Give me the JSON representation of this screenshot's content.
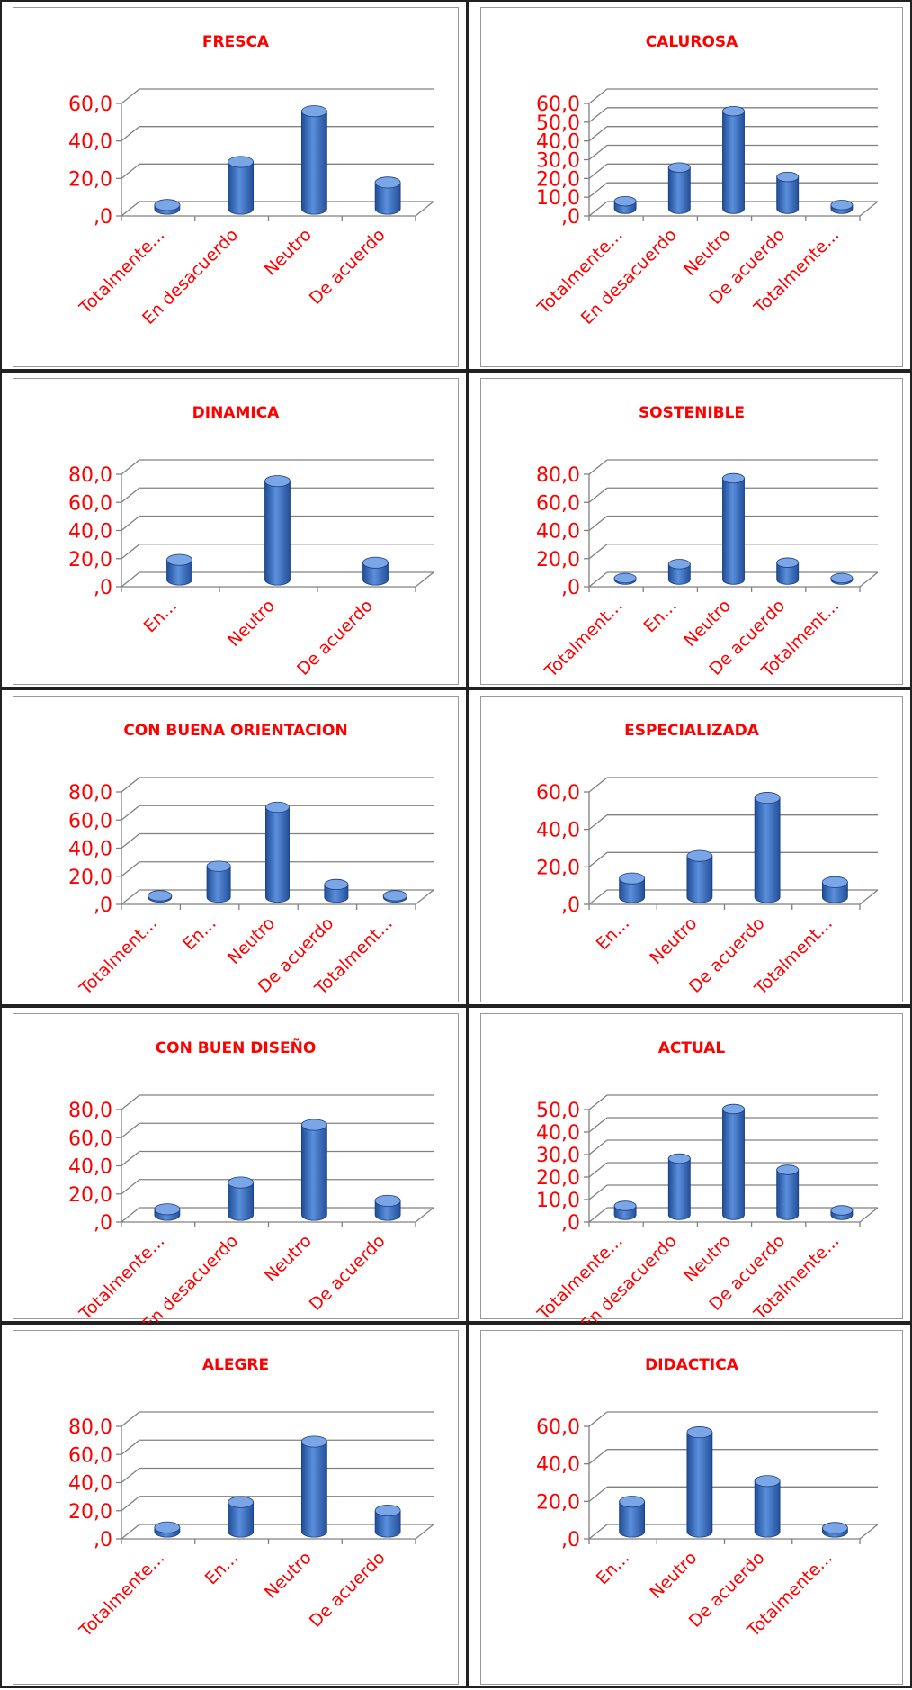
{
  "chart_data": [
    {
      "type": "bar",
      "title": "FRESCA",
      "categories": [
        "Totalmente...",
        "En desacuerdo",
        "Neutro",
        "De acuerdo"
      ],
      "values": [
        2.0,
        25.0,
        52.0,
        14.0
      ],
      "yticks": [
        "60,0",
        "40,0",
        "20,0",
        ",0"
      ],
      "ylim": [
        0,
        60
      ],
      "grid": true,
      "colors": {
        "bar": "#3a6fc4",
        "text": "#ff0000"
      }
    },
    {
      "type": "bar",
      "title": "CALUROSA",
      "categories": [
        "Totalmente...",
        "En desacuerdo",
        "Neutro",
        "De acuerdo",
        "Totalmente..."
      ],
      "values": [
        4.0,
        22.0,
        52.0,
        17.0,
        2.0
      ],
      "yticks": [
        "60,0",
        "50,0",
        "40,0",
        "30,0",
        "20,0",
        "10,0",
        ",0"
      ],
      "ylim": [
        0,
        60
      ],
      "grid": true,
      "colors": {
        "bar": "#3a6fc4",
        "text": "#ff0000"
      }
    },
    {
      "type": "bar",
      "title": "DINAMICA",
      "categories": [
        "En...",
        "Neutro",
        "De acuerdo"
      ],
      "values": [
        14.0,
        70.0,
        12.0
      ],
      "yticks": [
        "80,0",
        "60,0",
        "40,0",
        "20,0",
        ",0"
      ],
      "ylim": [
        0,
        80
      ],
      "grid": true,
      "colors": {
        "bar": "#3a6fc4",
        "text": "#ff0000"
      }
    },
    {
      "type": "bar",
      "title": "SOSTENIBLE",
      "categories": [
        "Totalment...",
        "En...",
        "Neutro",
        "De acuerdo",
        "Totalment..."
      ],
      "values": [
        1.0,
        11.0,
        72.0,
        12.0,
        1.0
      ],
      "yticks": [
        "80,0",
        "60,0",
        "40,0",
        "20,0",
        ",0"
      ],
      "ylim": [
        0,
        80
      ],
      "grid": true,
      "colors": {
        "bar": "#3a6fc4",
        "text": "#ff0000"
      }
    },
    {
      "type": "bar",
      "title": "CON BUENA ORIENTACION",
      "categories": [
        "Totalment...",
        "En...",
        "Neutro",
        "De acuerdo",
        "Totalment..."
      ],
      "values": [
        1.0,
        22.0,
        64.0,
        9.0,
        1.0
      ],
      "yticks": [
        "80,0",
        "60,0",
        "40,0",
        "20,0",
        ",0"
      ],
      "ylim": [
        0,
        80
      ],
      "grid": true,
      "colors": {
        "bar": "#3a6fc4",
        "text": "#ff0000"
      }
    },
    {
      "type": "bar",
      "title": "ESPECIALIZADA",
      "categories": [
        "En...",
        "Neutro",
        "De acuerdo",
        "Totalment..."
      ],
      "values": [
        10.0,
        22.0,
        53.0,
        8.0
      ],
      "yticks": [
        "60,0",
        "40,0",
        "20,0",
        ",0"
      ],
      "ylim": [
        0,
        60
      ],
      "grid": true,
      "colors": {
        "bar": "#3a6fc4",
        "text": "#ff0000"
      }
    },
    {
      "type": "bar",
      "title": "CON BUEN DISEÑO",
      "categories": [
        "Totalmente...",
        "En desacuerdo",
        "Neutro",
        "De acuerdo"
      ],
      "values": [
        4.0,
        23.0,
        64.0,
        10.0
      ],
      "yticks": [
        "80,0",
        "60,0",
        "40,0",
        "20,0",
        ",0"
      ],
      "ylim": [
        0,
        80
      ],
      "grid": true,
      "colors": {
        "bar": "#3a6fc4",
        "text": "#ff0000"
      }
    },
    {
      "type": "bar",
      "title": "ACTUAL",
      "categories": [
        "Totalmente...",
        "En desacuerdo",
        "Neutro",
        "De acuerdo",
        "Totalmente..."
      ],
      "values": [
        4.0,
        25.0,
        47.0,
        20.0,
        2.0
      ],
      "yticks": [
        "50,0",
        "40,0",
        "30,0",
        "20,0",
        "10,0",
        ",0"
      ],
      "ylim": [
        0,
        50
      ],
      "grid": true,
      "colors": {
        "bar": "#3a6fc4",
        "text": "#ff0000"
      }
    },
    {
      "type": "bar",
      "title": "ALEGRE",
      "categories": [
        "Totalmente...",
        "En...",
        "Neutro",
        "De acuerdo"
      ],
      "values": [
        3.0,
        21.0,
        64.0,
        15.0
      ],
      "yticks": [
        "80,0",
        "60,0",
        "40,0",
        "20,0",
        ",0"
      ],
      "ylim": [
        0,
        80
      ],
      "grid": true,
      "colors": {
        "bar": "#3a6fc4",
        "text": "#ff0000"
      }
    },
    {
      "type": "bar",
      "title": "DIDACTICA",
      "categories": [
        "En...",
        "Neutro",
        "De acuerdo",
        "Totalmente..."
      ],
      "values": [
        16.0,
        53.0,
        27.0,
        2.0
      ],
      "yticks": [
        "60,0",
        "40,0",
        "20,0",
        ",0"
      ],
      "ylim": [
        0,
        60
      ],
      "grid": true,
      "colors": {
        "bar": "#3a6fc4",
        "text": "#ff0000"
      }
    }
  ]
}
